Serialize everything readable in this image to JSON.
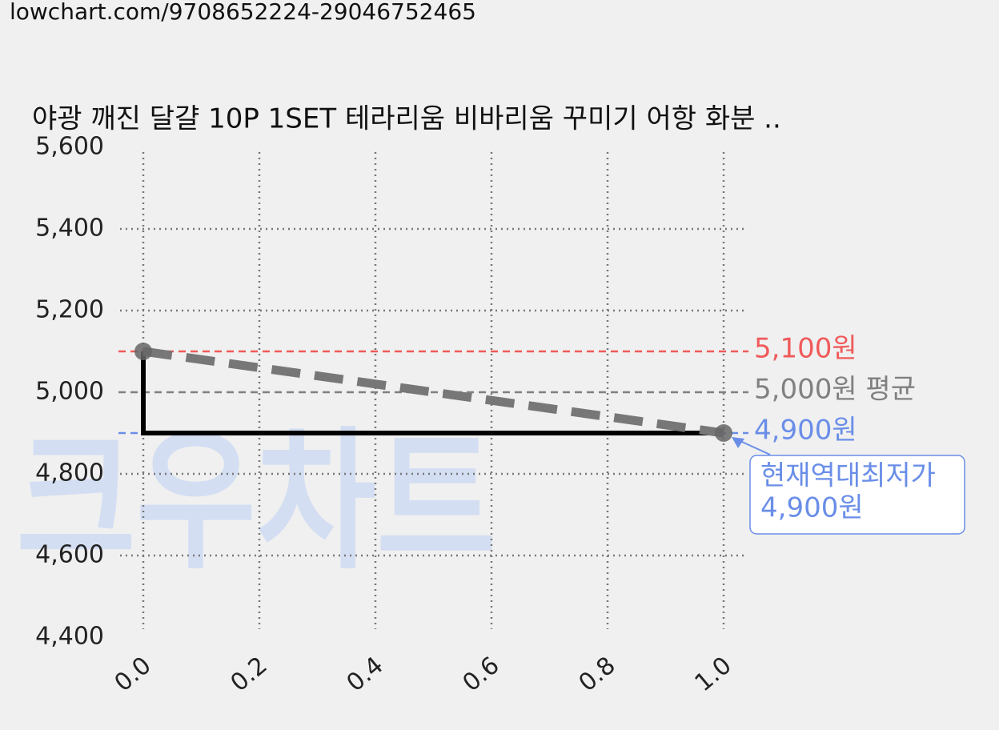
{
  "url": "lowchart.com/9708652224-29046752465",
  "watermark": "크우차트",
  "chart_data": {
    "type": "line",
    "title": "야광 깨진 달걀 10P 1SET 테라리움 비바리움 꾸미기 어항 화분 ..",
    "x": [
      0,
      1
    ],
    "series": [
      {
        "color": "#000000",
        "style": "step",
        "values": [
          5100,
          4900
        ]
      },
      {
        "color": "#777777",
        "style": "dashed",
        "values": [
          5100,
          4900
        ]
      }
    ],
    "xlim": [
      -0.04,
      1.04
    ],
    "ylim": [
      4400,
      5600
    ],
    "xticks": [
      {
        "value": 0,
        "label": "0.0"
      },
      0.2,
      0.4,
      0.6,
      0.8,
      {
        "value": 1,
        "label": "1.0"
      }
    ],
    "yticks": [
      {
        "value": 4400,
        "label": "4,400"
      },
      {
        "value": 4600,
        "label": "4,600"
      },
      {
        "value": 4800,
        "label": "4,800"
      },
      {
        "value": 5000,
        "label": "5,000"
      },
      {
        "value": 5200,
        "label": "5,200"
      },
      {
        "value": 5400,
        "label": "5,400"
      },
      {
        "value": 5600,
        "label": "5,600"
      }
    ],
    "grid": true,
    "hlines": [
      {
        "value": 5100,
        "label": "5,100원",
        "color": "#f05a5a"
      },
      {
        "value": 5000,
        "label": "5,000원 평균",
        "color": "#808080"
      },
      {
        "value": 4900,
        "label": "4,900원",
        "color": "#6a8ee8"
      }
    ],
    "annotation": {
      "x": 1,
      "y": 4900,
      "lines": [
        "현재역대최저가",
        "4,900원"
      ],
      "color": "#6a8ee8"
    }
  }
}
